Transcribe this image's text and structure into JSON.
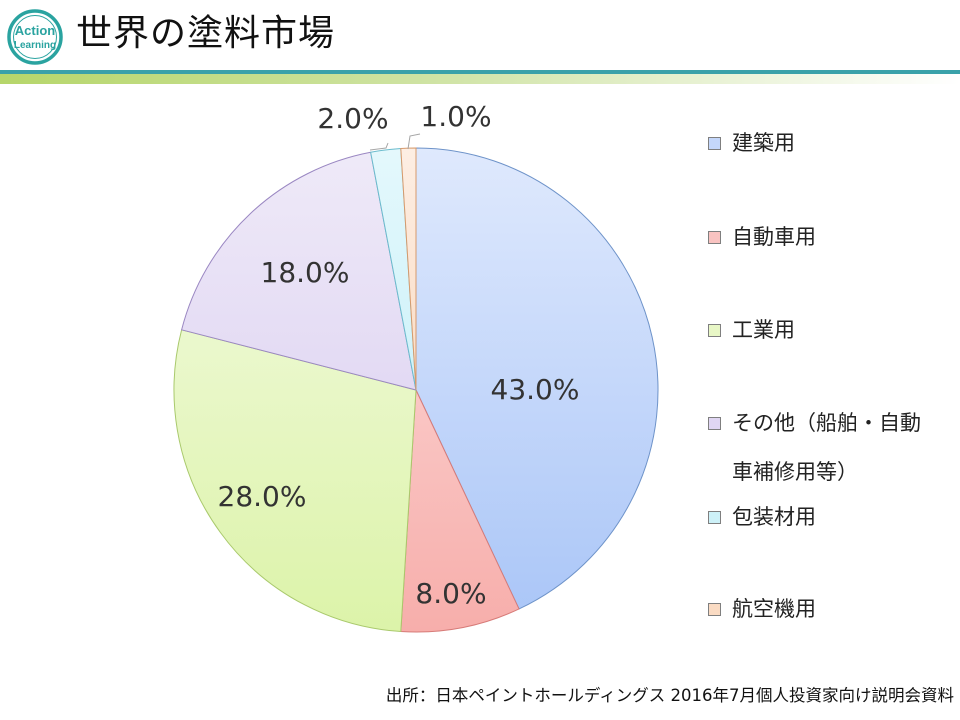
{
  "header": {
    "title": "世界の塗料市場",
    "logo_text_line1": "Action",
    "logo_text_line2": "Learning"
  },
  "colors": {
    "logo_accent": "#2aa3a0",
    "rule_green": "#b6d66a",
    "rule_teal": "#3aa1a9"
  },
  "chart_data": {
    "type": "pie",
    "title": "",
    "slices": [
      {
        "label": "建築用",
        "value": 43.0,
        "value_label": "43.0%",
        "color_light": "#dfe9fd",
        "color_dark": "#a9c5f7",
        "stroke": "#6e93c9"
      },
      {
        "label": "自動車用",
        "value": 8.0,
        "value_label": "8.0%",
        "color_light": "#fde0df",
        "color_dark": "#f7aeab",
        "stroke": "#d77b78"
      },
      {
        "label": "工業用",
        "value": 28.0,
        "value_label": "28.0%",
        "color_light": "#f4fbe4",
        "color_dark": "#dcf3a9",
        "stroke": "#a9c96c"
      },
      {
        "label": "その他（船舶・自動車補修用等）",
        "value": 18.0,
        "value_label": "18.0%",
        "color_light": "#efeaf8",
        "color_dark": "#d6c9ef",
        "stroke": "#9a87c2"
      },
      {
        "label": "包装材用",
        "value": 2.0,
        "value_label": "2.0%",
        "color_light": "#e4f8fc",
        "color_dark": "#b9ecf6",
        "stroke": "#6bbccd"
      },
      {
        "label": "航空機用",
        "value": 1.0,
        "value_label": "1.0%",
        "color_light": "#fdeee3",
        "color_dark": "#f7ccaa",
        "stroke": "#d79a6c"
      }
    ],
    "legend_position": "right"
  },
  "legend": {
    "items": [
      {
        "line1": "建築用",
        "line2": ""
      },
      {
        "line1": "自動車用",
        "line2": ""
      },
      {
        "line1": "工業用",
        "line2": ""
      },
      {
        "line1": "その他（船舶・自動",
        "line2": "車補修用等）"
      },
      {
        "line1": "包装材用",
        "line2": ""
      },
      {
        "line1": "航空機用",
        "line2": ""
      }
    ]
  },
  "footer": {
    "source": "出所：日本ペイントホールディングス 2016年7月個人投資家向け説明会資料"
  }
}
